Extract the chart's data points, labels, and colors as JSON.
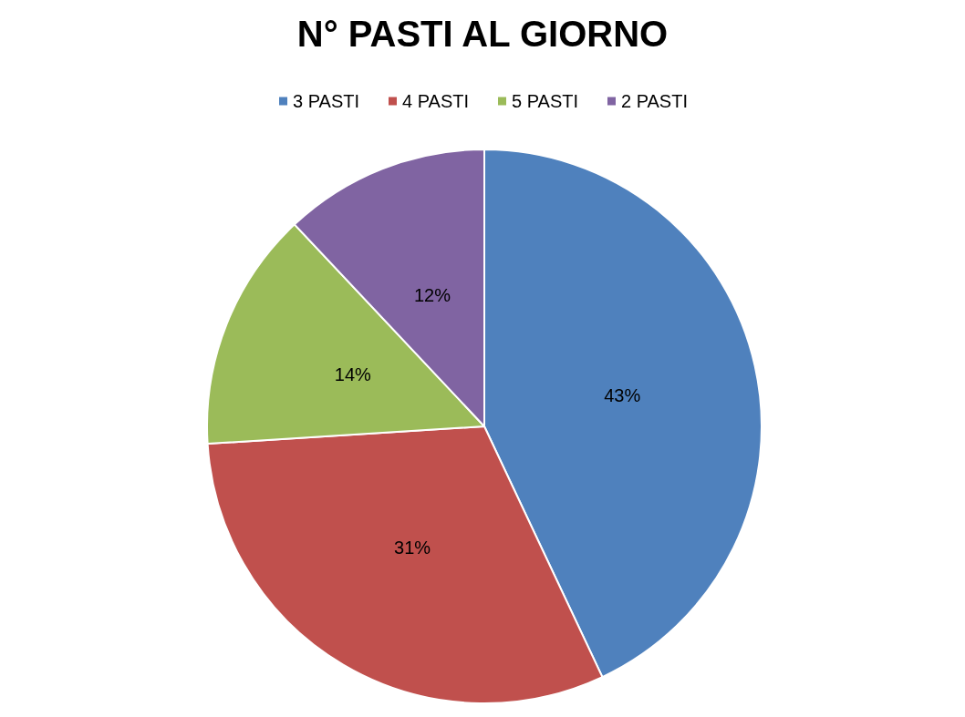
{
  "chart_data": {
    "type": "pie",
    "title": "N° PASTI AL GIORNO",
    "categories": [
      "3 PASTI",
      "4 PASTI",
      "5 PASTI",
      "2 PASTI"
    ],
    "values": [
      43,
      31,
      14,
      12
    ],
    "colors": [
      "#4f81bd",
      "#c0504d",
      "#9bbb59",
      "#8064a2"
    ],
    "value_labels": [
      "43%",
      "31%",
      "14%",
      "12%"
    ],
    "legend": "top"
  }
}
